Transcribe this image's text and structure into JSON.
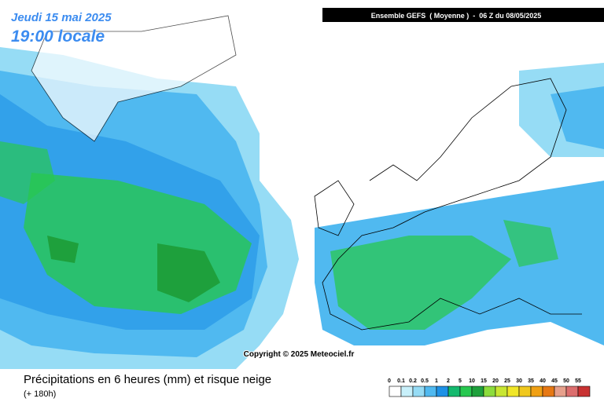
{
  "header": {
    "date": "Jeudi 15 mai 2025",
    "time": "19:00 locale",
    "run": "Ensemble GEFS  ( Moyenne )  -  06 Z du 08/05/2025"
  },
  "copyright": "Copyright © 2025 Meteociel.fr",
  "footer": {
    "title": "Précipitations en 6 heures (mm) et risque neige",
    "subtitle": "(+ 180h)"
  },
  "legend": {
    "labels": [
      "0",
      "0.1",
      "0.2",
      "0.5",
      "1",
      "2",
      "5",
      "10",
      "15",
      "20",
      "25",
      "30",
      "35",
      "40",
      "45",
      "50",
      "55"
    ],
    "colors": [
      "#ffffff",
      "#c8f0fa",
      "#96dcf5",
      "#50b9f0",
      "#1e91e6",
      "#14b96e",
      "#28c850",
      "#1ea03c",
      "#8cdc3c",
      "#c8e632",
      "#f0e628",
      "#f0c81e",
      "#f0a014",
      "#e67814",
      "#e6a08c",
      "#dc6e6e",
      "#c83232"
    ]
  }
}
